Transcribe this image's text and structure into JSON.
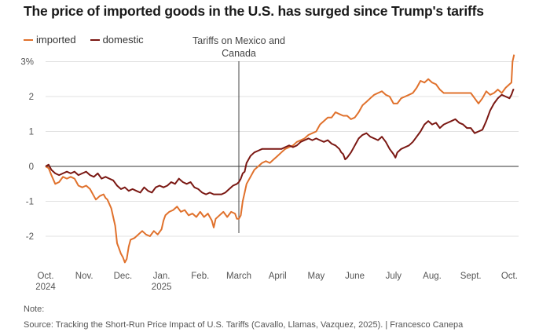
{
  "chart_data": {
    "type": "line",
    "title": "The price of imported goods in the U.S. has surged since Trump's tariffs",
    "xlabel": "",
    "ylabel": "",
    "x_ticks": [
      {
        "month": 0,
        "label": "Oct.",
        "year": "2024"
      },
      {
        "month": 1,
        "label": "Nov.",
        "year": ""
      },
      {
        "month": 2,
        "label": "Dec.",
        "year": ""
      },
      {
        "month": 3,
        "label": "Jan.",
        "year": "2025"
      },
      {
        "month": 4,
        "label": "Feb.",
        "year": ""
      },
      {
        "month": 5,
        "label": "March",
        "year": ""
      },
      {
        "month": 6,
        "label": "April",
        "year": ""
      },
      {
        "month": 7,
        "label": "May",
        "year": ""
      },
      {
        "month": 8,
        "label": "June",
        "year": ""
      },
      {
        "month": 9,
        "label": "July",
        "year": ""
      },
      {
        "month": 10,
        "label": "Aug.",
        "year": ""
      },
      {
        "month": 11,
        "label": "Sept.",
        "year": ""
      },
      {
        "month": 12,
        "label": "Oct.",
        "year": ""
      }
    ],
    "y_ticks": [
      {
        "value": 3,
        "label": "3%"
      },
      {
        "value": 2,
        "label": "2"
      },
      {
        "value": 1,
        "label": "1"
      },
      {
        "value": 0,
        "label": "0"
      },
      {
        "value": -1,
        "label": "-1"
      },
      {
        "value": -2,
        "label": "-2"
      }
    ],
    "xlim": [
      0,
      12.2
    ],
    "ylim": [
      -2.9,
      3.4
    ],
    "annotation": {
      "text_lines": [
        "Tariffs on Mexico and",
        "Canada"
      ],
      "x": 5.0
    },
    "series": [
      {
        "name": "imported",
        "color": "#e0712c",
        "points": [
          [
            0.0,
            0.0
          ],
          [
            0.08,
            -0.05
          ],
          [
            0.15,
            -0.25
          ],
          [
            0.25,
            -0.5
          ],
          [
            0.35,
            -0.45
          ],
          [
            0.45,
            -0.3
          ],
          [
            0.55,
            -0.35
          ],
          [
            0.65,
            -0.3
          ],
          [
            0.75,
            -0.35
          ],
          [
            0.85,
            -0.55
          ],
          [
            0.95,
            -0.6
          ],
          [
            1.05,
            -0.55
          ],
          [
            1.15,
            -0.65
          ],
          [
            1.25,
            -0.85
          ],
          [
            1.3,
            -0.95
          ],
          [
            1.4,
            -0.85
          ],
          [
            1.5,
            -0.8
          ],
          [
            1.55,
            -0.9
          ],
          [
            1.6,
            -0.95
          ],
          [
            1.7,
            -1.2
          ],
          [
            1.8,
            -1.7
          ],
          [
            1.85,
            -2.2
          ],
          [
            1.9,
            -2.35
          ],
          [
            1.95,
            -2.5
          ],
          [
            2.0,
            -2.6
          ],
          [
            2.05,
            -2.75
          ],
          [
            2.1,
            -2.65
          ],
          [
            2.15,
            -2.3
          ],
          [
            2.2,
            -2.1
          ],
          [
            2.3,
            -2.05
          ],
          [
            2.4,
            -1.95
          ],
          [
            2.5,
            -1.85
          ],
          [
            2.6,
            -1.95
          ],
          [
            2.7,
            -2.0
          ],
          [
            2.8,
            -1.85
          ],
          [
            2.9,
            -1.95
          ],
          [
            3.0,
            -1.8
          ],
          [
            3.05,
            -1.55
          ],
          [
            3.1,
            -1.4
          ],
          [
            3.2,
            -1.3
          ],
          [
            3.3,
            -1.25
          ],
          [
            3.4,
            -1.15
          ],
          [
            3.5,
            -1.3
          ],
          [
            3.6,
            -1.25
          ],
          [
            3.7,
            -1.4
          ],
          [
            3.8,
            -1.35
          ],
          [
            3.9,
            -1.45
          ],
          [
            4.0,
            -1.3
          ],
          [
            4.1,
            -1.45
          ],
          [
            4.2,
            -1.35
          ],
          [
            4.3,
            -1.55
          ],
          [
            4.35,
            -1.75
          ],
          [
            4.4,
            -1.5
          ],
          [
            4.5,
            -1.4
          ],
          [
            4.6,
            -1.3
          ],
          [
            4.7,
            -1.45
          ],
          [
            4.8,
            -1.3
          ],
          [
            4.9,
            -1.35
          ],
          [
            4.95,
            -1.5
          ],
          [
            5.0,
            -1.5
          ],
          [
            5.05,
            -1.4
          ],
          [
            5.1,
            -1.0
          ],
          [
            5.15,
            -0.75
          ],
          [
            5.2,
            -0.5
          ],
          [
            5.3,
            -0.3
          ],
          [
            5.4,
            -0.1
          ],
          [
            5.5,
            0.0
          ],
          [
            5.6,
            0.1
          ],
          [
            5.7,
            0.15
          ],
          [
            5.8,
            0.1
          ],
          [
            5.9,
            0.2
          ],
          [
            6.0,
            0.3
          ],
          [
            6.1,
            0.4
          ],
          [
            6.2,
            0.5
          ],
          [
            6.3,
            0.55
          ],
          [
            6.4,
            0.6
          ],
          [
            6.5,
            0.7
          ],
          [
            6.6,
            0.75
          ],
          [
            6.7,
            0.8
          ],
          [
            6.8,
            0.9
          ],
          [
            6.9,
            0.95
          ],
          [
            7.0,
            1.0
          ],
          [
            7.1,
            1.2
          ],
          [
            7.2,
            1.3
          ],
          [
            7.3,
            1.4
          ],
          [
            7.4,
            1.4
          ],
          [
            7.5,
            1.55
          ],
          [
            7.6,
            1.5
          ],
          [
            7.7,
            1.45
          ],
          [
            7.8,
            1.45
          ],
          [
            7.9,
            1.35
          ],
          [
            8.0,
            1.4
          ],
          [
            8.1,
            1.55
          ],
          [
            8.2,
            1.75
          ],
          [
            8.3,
            1.85
          ],
          [
            8.4,
            1.95
          ],
          [
            8.5,
            2.05
          ],
          [
            8.6,
            2.1
          ],
          [
            8.7,
            2.15
          ],
          [
            8.8,
            2.05
          ],
          [
            8.9,
            2.0
          ],
          [
            9.0,
            1.8
          ],
          [
            9.1,
            1.8
          ],
          [
            9.2,
            1.95
          ],
          [
            9.3,
            2.0
          ],
          [
            9.4,
            2.05
          ],
          [
            9.5,
            2.1
          ],
          [
            9.6,
            2.25
          ],
          [
            9.7,
            2.45
          ],
          [
            9.8,
            2.4
          ],
          [
            9.9,
            2.5
          ],
          [
            10.0,
            2.4
          ],
          [
            10.1,
            2.35
          ],
          [
            10.2,
            2.2
          ],
          [
            10.3,
            2.1
          ],
          [
            10.4,
            2.1
          ],
          [
            10.5,
            2.1
          ],
          [
            10.6,
            2.1
          ],
          [
            10.7,
            2.1
          ],
          [
            10.8,
            2.1
          ],
          [
            10.9,
            2.1
          ],
          [
            11.0,
            2.1
          ],
          [
            11.1,
            1.95
          ],
          [
            11.2,
            1.8
          ],
          [
            11.3,
            1.95
          ],
          [
            11.4,
            2.15
          ],
          [
            11.5,
            2.05
          ],
          [
            11.6,
            2.1
          ],
          [
            11.7,
            2.2
          ],
          [
            11.8,
            2.1
          ],
          [
            11.9,
            2.25
          ],
          [
            12.0,
            2.35
          ],
          [
            12.05,
            2.4
          ],
          [
            12.08,
            3.0
          ],
          [
            12.12,
            3.2
          ]
        ]
      },
      {
        "name": "domestic",
        "color": "#7a1712",
        "points": [
          [
            0.0,
            0.0
          ],
          [
            0.08,
            0.05
          ],
          [
            0.15,
            -0.1
          ],
          [
            0.25,
            -0.2
          ],
          [
            0.35,
            -0.25
          ],
          [
            0.45,
            -0.2
          ],
          [
            0.55,
            -0.15
          ],
          [
            0.65,
            -0.2
          ],
          [
            0.75,
            -0.15
          ],
          [
            0.85,
            -0.25
          ],
          [
            0.95,
            -0.2
          ],
          [
            1.05,
            -0.15
          ],
          [
            1.15,
            -0.25
          ],
          [
            1.25,
            -0.3
          ],
          [
            1.35,
            -0.2
          ],
          [
            1.45,
            -0.35
          ],
          [
            1.55,
            -0.3
          ],
          [
            1.65,
            -0.35
          ],
          [
            1.75,
            -0.4
          ],
          [
            1.85,
            -0.55
          ],
          [
            1.95,
            -0.65
          ],
          [
            2.05,
            -0.6
          ],
          [
            2.15,
            -0.7
          ],
          [
            2.25,
            -0.65
          ],
          [
            2.35,
            -0.7
          ],
          [
            2.45,
            -0.75
          ],
          [
            2.55,
            -0.6
          ],
          [
            2.65,
            -0.7
          ],
          [
            2.75,
            -0.75
          ],
          [
            2.85,
            -0.6
          ],
          [
            2.95,
            -0.55
          ],
          [
            3.05,
            -0.6
          ],
          [
            3.15,
            -0.55
          ],
          [
            3.25,
            -0.45
          ],
          [
            3.35,
            -0.5
          ],
          [
            3.45,
            -0.35
          ],
          [
            3.55,
            -0.45
          ],
          [
            3.65,
            -0.5
          ],
          [
            3.75,
            -0.45
          ],
          [
            3.85,
            -0.6
          ],
          [
            3.95,
            -0.65
          ],
          [
            4.05,
            -0.75
          ],
          [
            4.15,
            -0.8
          ],
          [
            4.25,
            -0.75
          ],
          [
            4.35,
            -0.8
          ],
          [
            4.45,
            -0.8
          ],
          [
            4.55,
            -0.8
          ],
          [
            4.65,
            -0.75
          ],
          [
            4.75,
            -0.65
          ],
          [
            4.85,
            -0.55
          ],
          [
            4.95,
            -0.5
          ],
          [
            5.0,
            -0.45
          ],
          [
            5.05,
            -0.35
          ],
          [
            5.1,
            -0.2
          ],
          [
            5.15,
            -0.15
          ],
          [
            5.2,
            0.1
          ],
          [
            5.3,
            0.3
          ],
          [
            5.4,
            0.4
          ],
          [
            5.5,
            0.45
          ],
          [
            5.6,
            0.5
          ],
          [
            5.7,
            0.5
          ],
          [
            5.8,
            0.5
          ],
          [
            5.9,
            0.5
          ],
          [
            6.0,
            0.5
          ],
          [
            6.1,
            0.5
          ],
          [
            6.2,
            0.55
          ],
          [
            6.3,
            0.6
          ],
          [
            6.4,
            0.55
          ],
          [
            6.5,
            0.6
          ],
          [
            6.6,
            0.7
          ],
          [
            6.7,
            0.75
          ],
          [
            6.8,
            0.8
          ],
          [
            6.9,
            0.75
          ],
          [
            7.0,
            0.8
          ],
          [
            7.1,
            0.75
          ],
          [
            7.2,
            0.7
          ],
          [
            7.3,
            0.75
          ],
          [
            7.4,
            0.65
          ],
          [
            7.5,
            0.6
          ],
          [
            7.6,
            0.5
          ],
          [
            7.65,
            0.4
          ],
          [
            7.7,
            0.35
          ],
          [
            7.75,
            0.2
          ],
          [
            7.8,
            0.25
          ],
          [
            7.9,
            0.4
          ],
          [
            8.0,
            0.6
          ],
          [
            8.1,
            0.8
          ],
          [
            8.2,
            0.9
          ],
          [
            8.3,
            0.95
          ],
          [
            8.4,
            0.85
          ],
          [
            8.5,
            0.8
          ],
          [
            8.6,
            0.75
          ],
          [
            8.7,
            0.85
          ],
          [
            8.8,
            0.7
          ],
          [
            8.9,
            0.5
          ],
          [
            9.0,
            0.35
          ],
          [
            9.05,
            0.25
          ],
          [
            9.1,
            0.4
          ],
          [
            9.2,
            0.5
          ],
          [
            9.3,
            0.55
          ],
          [
            9.4,
            0.6
          ],
          [
            9.5,
            0.7
          ],
          [
            9.6,
            0.85
          ],
          [
            9.7,
            1.0
          ],
          [
            9.8,
            1.2
          ],
          [
            9.9,
            1.3
          ],
          [
            10.0,
            1.2
          ],
          [
            10.1,
            1.25
          ],
          [
            10.2,
            1.1
          ],
          [
            10.3,
            1.2
          ],
          [
            10.4,
            1.25
          ],
          [
            10.5,
            1.3
          ],
          [
            10.6,
            1.35
          ],
          [
            10.7,
            1.25
          ],
          [
            10.8,
            1.2
          ],
          [
            10.9,
            1.1
          ],
          [
            11.0,
            1.1
          ],
          [
            11.1,
            0.95
          ],
          [
            11.2,
            1.0
          ],
          [
            11.3,
            1.05
          ],
          [
            11.4,
            1.3
          ],
          [
            11.5,
            1.6
          ],
          [
            11.6,
            1.8
          ],
          [
            11.7,
            1.95
          ],
          [
            11.8,
            2.05
          ],
          [
            11.9,
            2.0
          ],
          [
            12.0,
            1.95
          ],
          [
            12.05,
            2.05
          ],
          [
            12.1,
            2.2
          ],
          [
            12.12,
            2.2
          ]
        ]
      }
    ]
  },
  "footer": {
    "note": "Note:",
    "source": "Source: Tracking the Short-Run Price Impact of U.S. Tariffs (Cavallo, Llamas, Vazquez, 2025). | Francesco Canepa"
  }
}
